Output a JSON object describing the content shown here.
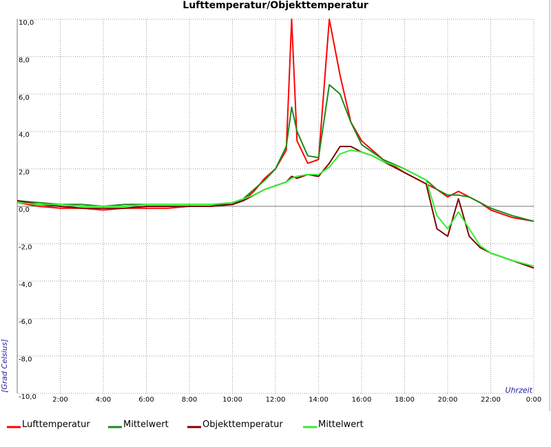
{
  "chart_data": {
    "type": "line",
    "title": "Lufttemperatur/Objekttemperatur",
    "y_label": "[Grad Celsius]",
    "x_label": "Uhrzeit",
    "x": [
      0,
      1,
      2,
      3,
      4,
      5,
      6,
      7,
      8,
      9,
      10,
      10.5,
      11,
      11.5,
      12,
      12.5,
      12.75,
      13,
      13.5,
      14,
      14.5,
      15,
      15.5,
      16,
      16.5,
      17,
      18,
      19,
      19.5,
      20,
      20.5,
      21,
      21.5,
      22,
      23,
      24
    ],
    "series": [
      {
        "name": "Lufttemperatur",
        "color": "#ff0000",
        "values": [
          0.2,
          0,
          -0.1,
          -0.1,
          -0.2,
          -0.1,
          -0.1,
          -0.1,
          0,
          0,
          0.1,
          0.3,
          0.8,
          1.5,
          2.0,
          3.0,
          10.0,
          3.5,
          2.3,
          2.5,
          10.0,
          7.0,
          4.5,
          3.5,
          3.0,
          2.5,
          1.8,
          1.2,
          0.9,
          0.5,
          0.8,
          0.5,
          0.2,
          -0.2,
          -0.6,
          -0.8
        ]
      },
      {
        "name": "Mittelwert",
        "color": "#1a8a1a",
        "values": [
          0.3,
          0.2,
          0.1,
          0.1,
          0,
          0.1,
          0.1,
          0.1,
          0.1,
          0.1,
          0.1,
          0.4,
          0.9,
          1.4,
          2.0,
          3.2,
          5.3,
          4.0,
          2.7,
          2.6,
          6.5,
          6.0,
          4.5,
          3.3,
          2.9,
          2.5,
          2.0,
          1.4,
          0.9,
          0.6,
          0.6,
          0.5,
          0.2,
          -0.1,
          -0.5,
          -0.8
        ]
      },
      {
        "name": "Objekttemperatur",
        "color": "#800000",
        "values": [
          0.3,
          0.1,
          0,
          -0.1,
          -0.1,
          -0.1,
          0,
          0,
          0,
          0,
          0.1,
          0.3,
          0.6,
          0.9,
          1.1,
          1.3,
          1.6,
          1.5,
          1.7,
          1.6,
          2.3,
          3.2,
          3.2,
          2.9,
          2.7,
          2.4,
          1.8,
          1.2,
          -1.2,
          -1.6,
          0.4,
          -1.6,
          -2.2,
          -2.5,
          -2.9,
          -3.3
        ]
      },
      {
        "name": "Mittelwert",
        "color": "#33ee33",
        "values": [
          0.2,
          0.1,
          0.1,
          0,
          0,
          0,
          0.1,
          0.1,
          0.1,
          0.1,
          0.2,
          0.4,
          0.6,
          0.9,
          1.1,
          1.3,
          1.5,
          1.6,
          1.7,
          1.7,
          2.1,
          2.8,
          3.0,
          2.9,
          2.7,
          2.4,
          2.0,
          1.4,
          -0.5,
          -1.2,
          -0.3,
          -1.2,
          -2.1,
          -2.5,
          -2.9,
          -3.2
        ]
      }
    ],
    "xlim": [
      0,
      24
    ],
    "xticks": [
      {
        "value": 2,
        "label": "2:00"
      },
      {
        "value": 4,
        "label": "4:00"
      },
      {
        "value": 6,
        "label": "6:00"
      },
      {
        "value": 8,
        "label": "8:00"
      },
      {
        "value": 10,
        "label": "10:00"
      },
      {
        "value": 12,
        "label": "12:00"
      },
      {
        "value": 14,
        "label": "14:00"
      },
      {
        "value": 16,
        "label": "16:00"
      },
      {
        "value": 18,
        "label": "18:00"
      },
      {
        "value": 20,
        "label": "20:00"
      },
      {
        "value": 22,
        "label": "22:00"
      },
      {
        "value": 24,
        "label": "0:00"
      }
    ],
    "ylim": [
      -10,
      10
    ],
    "yticks": [
      {
        "value": -10,
        "label": "-10,0"
      },
      {
        "value": -8,
        "label": "-8,0"
      },
      {
        "value": -6,
        "label": "-6,0"
      },
      {
        "value": -4,
        "label": "-4,0"
      },
      {
        "value": -2,
        "label": "-2,0"
      },
      {
        "value": 0,
        "label": "0,0"
      },
      {
        "value": 2,
        "label": "2,0"
      },
      {
        "value": 4,
        "label": "4,0"
      },
      {
        "value": 6,
        "label": "6,0"
      },
      {
        "value": 8,
        "label": "8,0"
      },
      {
        "value": 10,
        "label": "10,0"
      }
    ],
    "grid": true
  }
}
